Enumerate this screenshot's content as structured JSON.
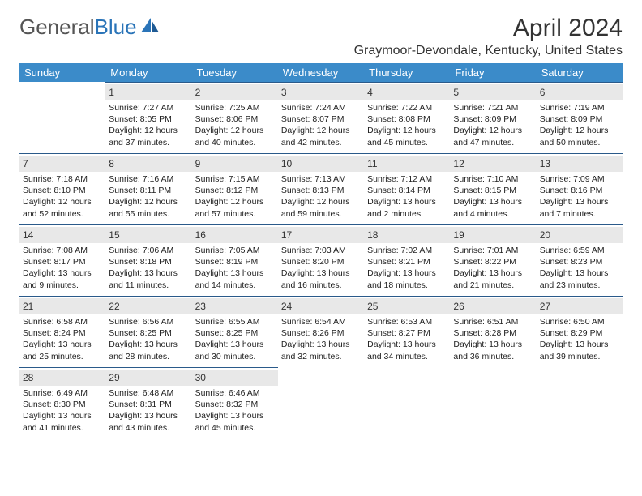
{
  "logo": {
    "text1": "General",
    "text2": "Blue"
  },
  "title": "April 2024",
  "location": "Graymoor-Devondale, Kentucky, United States",
  "colors": {
    "header_bg": "#3b8bc9",
    "header_text": "#ffffff",
    "daynum_bg": "#e8e8e8",
    "border": "#2a5a8a",
    "logo_gray": "#555555",
    "logo_blue": "#2a74b8"
  },
  "day_headers": [
    "Sunday",
    "Monday",
    "Tuesday",
    "Wednesday",
    "Thursday",
    "Friday",
    "Saturday"
  ],
  "weeks": [
    [
      null,
      {
        "n": "1",
        "sr": "7:27 AM",
        "ss": "8:05 PM",
        "dl": "12 hours and 37 minutes."
      },
      {
        "n": "2",
        "sr": "7:25 AM",
        "ss": "8:06 PM",
        "dl": "12 hours and 40 minutes."
      },
      {
        "n": "3",
        "sr": "7:24 AM",
        "ss": "8:07 PM",
        "dl": "12 hours and 42 minutes."
      },
      {
        "n": "4",
        "sr": "7:22 AM",
        "ss": "8:08 PM",
        "dl": "12 hours and 45 minutes."
      },
      {
        "n": "5",
        "sr": "7:21 AM",
        "ss": "8:09 PM",
        "dl": "12 hours and 47 minutes."
      },
      {
        "n": "6",
        "sr": "7:19 AM",
        "ss": "8:09 PM",
        "dl": "12 hours and 50 minutes."
      }
    ],
    [
      {
        "n": "7",
        "sr": "7:18 AM",
        "ss": "8:10 PM",
        "dl": "12 hours and 52 minutes."
      },
      {
        "n": "8",
        "sr": "7:16 AM",
        "ss": "8:11 PM",
        "dl": "12 hours and 55 minutes."
      },
      {
        "n": "9",
        "sr": "7:15 AM",
        "ss": "8:12 PM",
        "dl": "12 hours and 57 minutes."
      },
      {
        "n": "10",
        "sr": "7:13 AM",
        "ss": "8:13 PM",
        "dl": "12 hours and 59 minutes."
      },
      {
        "n": "11",
        "sr": "7:12 AM",
        "ss": "8:14 PM",
        "dl": "13 hours and 2 minutes."
      },
      {
        "n": "12",
        "sr": "7:10 AM",
        "ss": "8:15 PM",
        "dl": "13 hours and 4 minutes."
      },
      {
        "n": "13",
        "sr": "7:09 AM",
        "ss": "8:16 PM",
        "dl": "13 hours and 7 minutes."
      }
    ],
    [
      {
        "n": "14",
        "sr": "7:08 AM",
        "ss": "8:17 PM",
        "dl": "13 hours and 9 minutes."
      },
      {
        "n": "15",
        "sr": "7:06 AM",
        "ss": "8:18 PM",
        "dl": "13 hours and 11 minutes."
      },
      {
        "n": "16",
        "sr": "7:05 AM",
        "ss": "8:19 PM",
        "dl": "13 hours and 14 minutes."
      },
      {
        "n": "17",
        "sr": "7:03 AM",
        "ss": "8:20 PM",
        "dl": "13 hours and 16 minutes."
      },
      {
        "n": "18",
        "sr": "7:02 AM",
        "ss": "8:21 PM",
        "dl": "13 hours and 18 minutes."
      },
      {
        "n": "19",
        "sr": "7:01 AM",
        "ss": "8:22 PM",
        "dl": "13 hours and 21 minutes."
      },
      {
        "n": "20",
        "sr": "6:59 AM",
        "ss": "8:23 PM",
        "dl": "13 hours and 23 minutes."
      }
    ],
    [
      {
        "n": "21",
        "sr": "6:58 AM",
        "ss": "8:24 PM",
        "dl": "13 hours and 25 minutes."
      },
      {
        "n": "22",
        "sr": "6:56 AM",
        "ss": "8:25 PM",
        "dl": "13 hours and 28 minutes."
      },
      {
        "n": "23",
        "sr": "6:55 AM",
        "ss": "8:25 PM",
        "dl": "13 hours and 30 minutes."
      },
      {
        "n": "24",
        "sr": "6:54 AM",
        "ss": "8:26 PM",
        "dl": "13 hours and 32 minutes."
      },
      {
        "n": "25",
        "sr": "6:53 AM",
        "ss": "8:27 PM",
        "dl": "13 hours and 34 minutes."
      },
      {
        "n": "26",
        "sr": "6:51 AM",
        "ss": "8:28 PM",
        "dl": "13 hours and 36 minutes."
      },
      {
        "n": "27",
        "sr": "6:50 AM",
        "ss": "8:29 PM",
        "dl": "13 hours and 39 minutes."
      }
    ],
    [
      {
        "n": "28",
        "sr": "6:49 AM",
        "ss": "8:30 PM",
        "dl": "13 hours and 41 minutes."
      },
      {
        "n": "29",
        "sr": "6:48 AM",
        "ss": "8:31 PM",
        "dl": "13 hours and 43 minutes."
      },
      {
        "n": "30",
        "sr": "6:46 AM",
        "ss": "8:32 PM",
        "dl": "13 hours and 45 minutes."
      },
      null,
      null,
      null,
      null
    ]
  ],
  "labels": {
    "sunrise": "Sunrise:",
    "sunset": "Sunset:",
    "daylight": "Daylight:"
  }
}
